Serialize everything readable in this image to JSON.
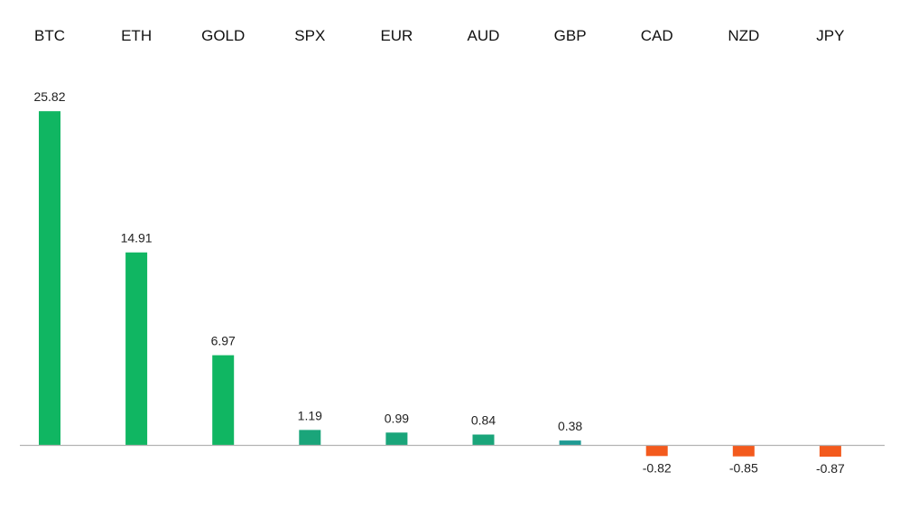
{
  "chart_data": {
    "type": "bar",
    "categories": [
      "BTC",
      "ETH",
      "GOLD",
      "SPX",
      "EUR",
      "AUD",
      "GBP",
      "CAD",
      "NZD",
      "JPY"
    ],
    "values": [
      25.82,
      14.91,
      6.97,
      1.19,
      0.99,
      0.84,
      0.38,
      -0.82,
      -0.85,
      -0.87
    ],
    "value_labels": [
      "25.82",
      "14.91",
      "6.97",
      "1.19",
      "0.99",
      "0.84",
      "0.38",
      "-0.82",
      "-0.85",
      "-0.87"
    ],
    "title": "",
    "xlabel": "",
    "ylabel": "",
    "category_axis_position": "top",
    "grid": false,
    "legend": "none",
    "colors": {
      "positive_strong": "#10b662",
      "positive_mid": "#1aa57a",
      "positive_weak": "#1e9a93",
      "negative": "#f35a1d",
      "axis": "#b3b3b3"
    }
  }
}
